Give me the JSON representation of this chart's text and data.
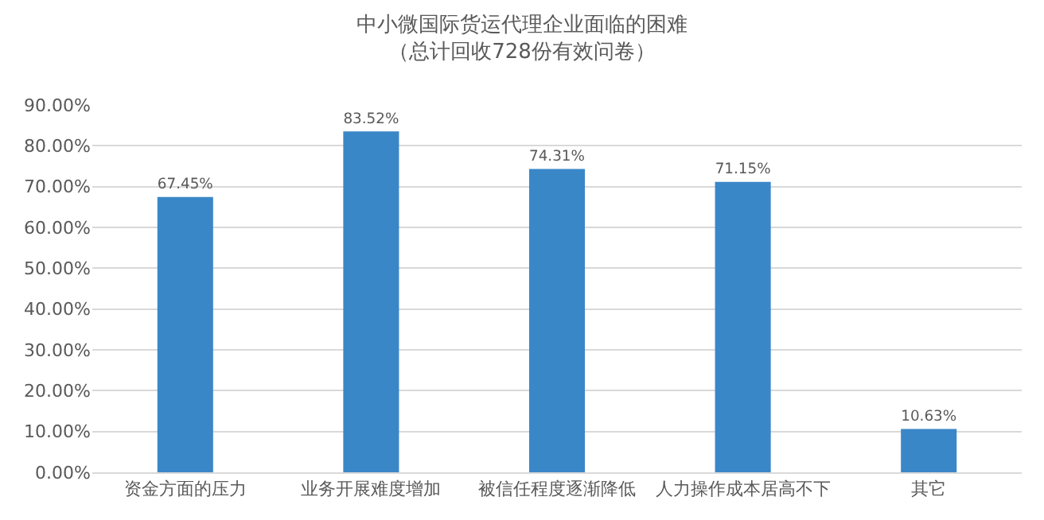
{
  "chart_data": {
    "type": "bar",
    "title": "中小微国际货运代理企业面临的困难",
    "subtitle": "（总计回收728份有效问卷）",
    "categories": [
      "资金方面的压力",
      "业务开展难度增加",
      "被信任程度逐渐降低",
      "人力操作成本居高不下",
      "其它"
    ],
    "values": [
      67.45,
      83.52,
      74.31,
      71.15,
      10.63
    ],
    "value_labels": [
      "67.45%",
      "83.52%",
      "74.31%",
      "71.15%",
      "10.63%"
    ],
    "color": "#3a87c8",
    "ylim": [
      0,
      90
    ],
    "yticks": [
      {
        "value": 0,
        "label": "0.00%"
      },
      {
        "value": 10,
        "label": "10.00%"
      },
      {
        "value": 20,
        "label": "20.00%"
      },
      {
        "value": 30,
        "label": "30.00%"
      },
      {
        "value": 40,
        "label": "40.00%"
      },
      {
        "value": 50,
        "label": "50.00%"
      },
      {
        "value": 60,
        "label": "60.00%"
      },
      {
        "value": 70,
        "label": "70.00%"
      },
      {
        "value": 80,
        "label": "80.00%"
      },
      {
        "value": 90,
        "label": "90.00%"
      }
    ],
    "grid": "y"
  }
}
